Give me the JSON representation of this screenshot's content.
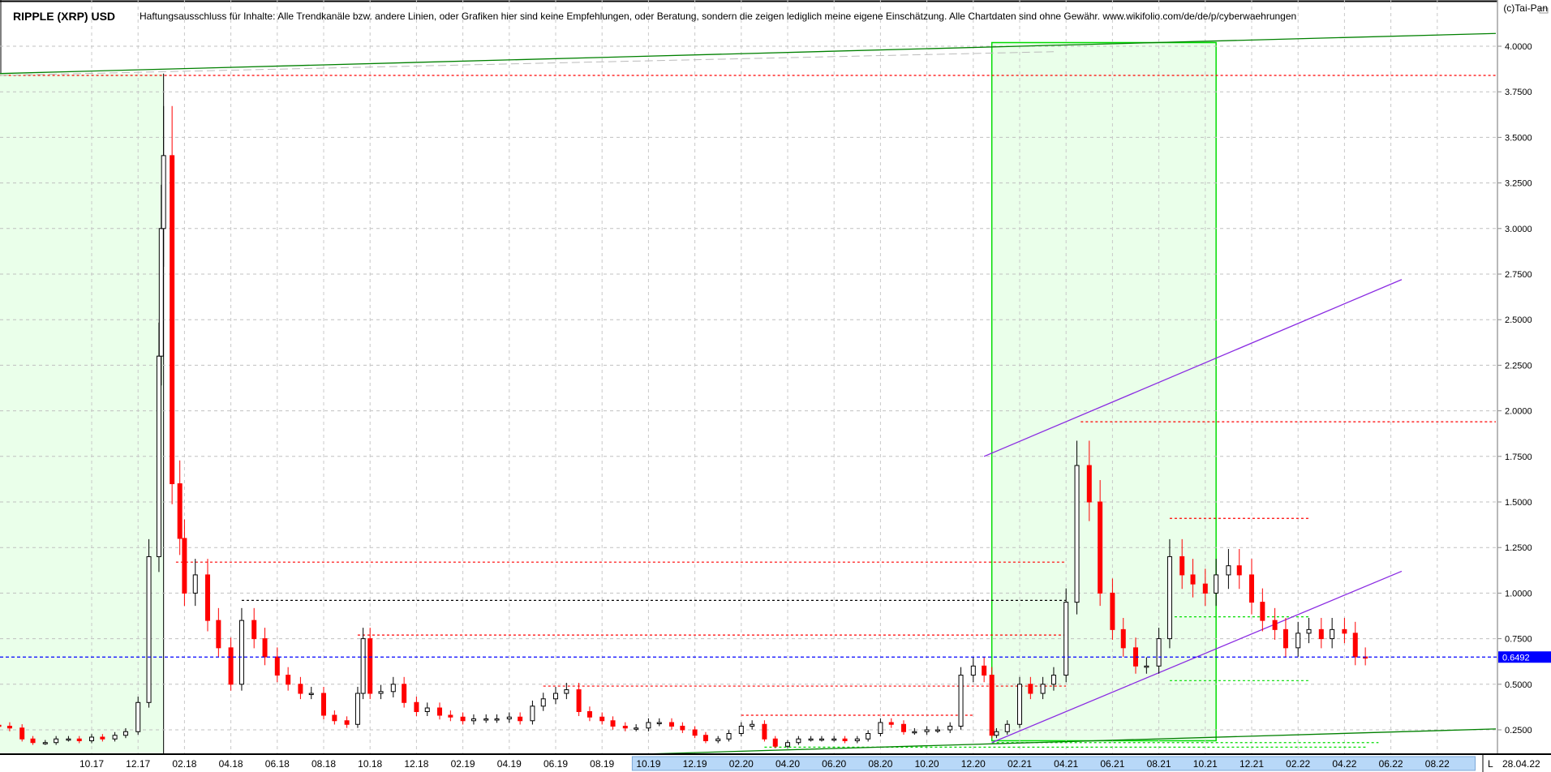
{
  "header": {
    "title": "RIPPLE (XRP) USD",
    "disclaimer": "Haftungsausschluss für Inhalte: Alle Trendkanäle bzw. andere Linien, oder Grafiken hier sind keine Empfehlungen, oder Beratung, sondern die zeigen lediglich meine eigene Einschätzung. Alle Chartdaten sind ohne Gewähr.  www.wikifolio.com/de/de/p/cyberwaehrungen",
    "copyright": "(c)Tai-Pan"
  },
  "chart_data": {
    "type": "candlestick",
    "title": "RIPPLE (XRP) USD",
    "ylim": [
      0.15,
      4.15
    ],
    "y_ticks": [
      "4.0000",
      "3.7500",
      "3.5000",
      "3.2500",
      "3.0000",
      "2.7500",
      "2.5000",
      "2.2500",
      "2.0000",
      "1.7500",
      "1.5000",
      "1.2500",
      "1.0000",
      "0.7500",
      "0.5000",
      "0.2500"
    ],
    "x_ticks": [
      "10.17",
      "12.17",
      "02.18",
      "04.18",
      "06.18",
      "08.18",
      "10.18",
      "12.18",
      "02.19",
      "04.19",
      "06.19",
      "08.19",
      "10.19",
      "12.19",
      "02.20",
      "04.20",
      "06.20",
      "08.20",
      "10.20",
      "12.20",
      "02.21",
      "04.21",
      "06.21",
      "08.21",
      "10.21",
      "12.21",
      "02.22",
      "04.22",
      "06.22",
      "08.22"
    ],
    "axis_mode_label": "L",
    "last_date": "28.04.22",
    "last_price": "0.6492",
    "grid": true,
    "colors": {
      "up": "#000000",
      "down": "#ff0000",
      "last_price": "#0000ff",
      "channel": "#8a2be2",
      "long_trend": "#008000",
      "box": "#00dd00",
      "box_fill": "#eaffea",
      "level": "#ff0000"
    },
    "prices": [
      [
        "01.06.17",
        0.27
      ],
      [
        "15.06.17",
        0.26
      ],
      [
        "01.07.17",
        0.2
      ],
      [
        "15.07.17",
        0.18
      ],
      [
        "01.08.17",
        0.18
      ],
      [
        "15.08.17",
        0.2
      ],
      [
        "01.09.17",
        0.2
      ],
      [
        "15.09.17",
        0.19
      ],
      [
        "01.10.17",
        0.21
      ],
      [
        "15.10.17",
        0.2
      ],
      [
        "01.11.17",
        0.22
      ],
      [
        "15.11.17",
        0.24
      ],
      [
        "01.12.17",
        0.4
      ],
      [
        "15.12.17",
        1.2
      ],
      [
        "28.12.17",
        2.3
      ],
      [
        "01.01.18",
        3.0
      ],
      [
        "04.01.18",
        3.4
      ],
      [
        "15.01.18",
        1.6
      ],
      [
        "25.01.18",
        1.3
      ],
      [
        "01.02.18",
        1.0
      ],
      [
        "15.02.18",
        1.1
      ],
      [
        "01.03.18",
        0.85
      ],
      [
        "15.03.18",
        0.7
      ],
      [
        "01.04.18",
        0.5
      ],
      [
        "15.04.18",
        0.85
      ],
      [
        "01.05.18",
        0.75
      ],
      [
        "15.05.18",
        0.65
      ],
      [
        "01.06.18",
        0.55
      ],
      [
        "15.06.18",
        0.5
      ],
      [
        "01.07.18",
        0.45
      ],
      [
        "15.07.18",
        0.45
      ],
      [
        "01.08.18",
        0.33
      ],
      [
        "15.08.18",
        0.3
      ],
      [
        "01.09.18",
        0.28
      ],
      [
        "15.09.18",
        0.45
      ],
      [
        "22.09.18",
        0.75
      ],
      [
        "01.10.18",
        0.45
      ],
      [
        "15.10.18",
        0.46
      ],
      [
        "01.11.18",
        0.5
      ],
      [
        "15.11.18",
        0.4
      ],
      [
        "01.12.18",
        0.35
      ],
      [
        "15.12.18",
        0.37
      ],
      [
        "01.01.19",
        0.33
      ],
      [
        "15.01.19",
        0.32
      ],
      [
        "01.02.19",
        0.3
      ],
      [
        "15.02.19",
        0.31
      ],
      [
        "01.03.19",
        0.31
      ],
      [
        "15.03.19",
        0.31
      ],
      [
        "01.04.19",
        0.32
      ],
      [
        "15.04.19",
        0.3
      ],
      [
        "01.05.19",
        0.38
      ],
      [
        "15.05.19",
        0.42
      ],
      [
        "01.06.19",
        0.45
      ],
      [
        "15.06.19",
        0.47
      ],
      [
        "01.07.19",
        0.35
      ],
      [
        "15.07.19",
        0.32
      ],
      [
        "01.08.19",
        0.3
      ],
      [
        "15.08.19",
        0.27
      ],
      [
        "01.09.19",
        0.26
      ],
      [
        "15.09.19",
        0.26
      ],
      [
        "01.10.19",
        0.29
      ],
      [
        "15.10.19",
        0.29
      ],
      [
        "01.11.19",
        0.27
      ],
      [
        "15.11.19",
        0.25
      ],
      [
        "01.12.19",
        0.22
      ],
      [
        "15.12.19",
        0.19
      ],
      [
        "01.01.20",
        0.2
      ],
      [
        "15.01.20",
        0.23
      ],
      [
        "01.02.20",
        0.27
      ],
      [
        "15.02.20",
        0.28
      ],
      [
        "01.03.20",
        0.2
      ],
      [
        "15.03.20",
        0.16
      ],
      [
        "01.04.20",
        0.18
      ],
      [
        "15.04.20",
        0.2
      ],
      [
        "01.05.20",
        0.2
      ],
      [
        "15.05.20",
        0.2
      ],
      [
        "01.06.20",
        0.2
      ],
      [
        "15.06.20",
        0.19
      ],
      [
        "01.07.20",
        0.2
      ],
      [
        "15.07.20",
        0.23
      ],
      [
        "01.08.20",
        0.29
      ],
      [
        "15.08.20",
        0.28
      ],
      [
        "01.09.20",
        0.24
      ],
      [
        "15.09.20",
        0.24
      ],
      [
        "01.10.20",
        0.25
      ],
      [
        "15.10.20",
        0.25
      ],
      [
        "01.11.20",
        0.27
      ],
      [
        "15.11.20",
        0.55
      ],
      [
        "01.12.20",
        0.6
      ],
      [
        "15.12.20",
        0.55
      ],
      [
        "25.12.20",
        0.22
      ],
      [
        "01.01.21",
        0.24
      ],
      [
        "15.01.21",
        0.28
      ],
      [
        "01.02.21",
        0.5
      ],
      [
        "15.02.21",
        0.45
      ],
      [
        "01.03.21",
        0.5
      ],
      [
        "15.03.21",
        0.55
      ],
      [
        "01.04.21",
        0.95
      ],
      [
        "15.04.21",
        1.7
      ],
      [
        "01.05.21",
        1.5
      ],
      [
        "15.05.21",
        1.0
      ],
      [
        "01.06.21",
        0.8
      ],
      [
        "15.06.21",
        0.7
      ],
      [
        "01.07.21",
        0.6
      ],
      [
        "15.07.21",
        0.6
      ],
      [
        "01.08.21",
        0.75
      ],
      [
        "15.08.21",
        1.2
      ],
      [
        "01.09.21",
        1.1
      ],
      [
        "15.09.21",
        1.05
      ],
      [
        "01.10.21",
        1.0
      ],
      [
        "15.10.21",
        1.1
      ],
      [
        "01.11.21",
        1.15
      ],
      [
        "15.11.21",
        1.1
      ],
      [
        "01.12.21",
        0.95
      ],
      [
        "15.12.21",
        0.85
      ],
      [
        "01.01.22",
        0.8
      ],
      [
        "15.01.22",
        0.7
      ],
      [
        "01.02.22",
        0.78
      ],
      [
        "15.02.22",
        0.8
      ],
      [
        "01.03.22",
        0.75
      ],
      [
        "15.03.22",
        0.8
      ],
      [
        "01.04.22",
        0.78
      ],
      [
        "15.04.22",
        0.65
      ],
      [
        "28.04.22",
        0.6492
      ]
    ],
    "levels": [
      {
        "price": 3.84,
        "from": "01.06.17",
        "to": "end",
        "color": "red"
      },
      {
        "price": 1.94,
        "from": "20.04.21",
        "to": "end",
        "color": "red"
      },
      {
        "price": 1.41,
        "from": "15.08.21",
        "to": "15.02.22",
        "color": "red"
      },
      {
        "price": 1.17,
        "from": "20.01.18",
        "to": "01.04.21",
        "color": "red"
      },
      {
        "price": 0.96,
        "from": "15.04.18",
        "to": "01.04.21",
        "color": "black"
      },
      {
        "price": 0.77,
        "from": "15.09.18",
        "to": "01.04.21",
        "color": "red"
      },
      {
        "price": 0.49,
        "from": "15.05.19",
        "to": "01.04.21",
        "color": "red"
      },
      {
        "price": 0.33,
        "from": "01.02.20",
        "to": "01.12.20",
        "color": "red"
      },
      {
        "price": 0.87,
        "from": "15.08.21",
        "to": "15.02.22",
        "color": "green"
      },
      {
        "price": 0.52,
        "from": "15.08.21",
        "to": "15.02.22",
        "color": "green"
      },
      {
        "price": 0.18,
        "from": "25.12.20",
        "to": "15.05.22",
        "color": "green"
      },
      {
        "price": 0.155,
        "from": "01.03.20",
        "to": "01.05.22",
        "color": "green"
      }
    ],
    "trendlines": [
      {
        "kind": "long_trend",
        "from": [
          "01.06.17",
          3.85
        ],
        "to": [
          "end",
          4.07
        ]
      },
      {
        "kind": "long_trend",
        "from": [
          "01.04.19",
          0.095
        ],
        "to": [
          "end",
          0.255
        ]
      },
      {
        "kind": "channel",
        "from": [
          "15.12.20",
          1.75
        ],
        "to": [
          "15.06.22",
          2.72
        ]
      },
      {
        "kind": "channel",
        "from": [
          "25.12.20",
          0.18
        ],
        "to": [
          "15.06.22",
          1.12
        ]
      }
    ],
    "boxes": [
      {
        "from": "01.06.17",
        "to": "04.01.18",
        "top": 3.85,
        "bottom": 0.0
      },
      {
        "from": "25.12.20",
        "to": "15.10.21",
        "top": 4.02,
        "bottom": 0.19
      }
    ]
  }
}
